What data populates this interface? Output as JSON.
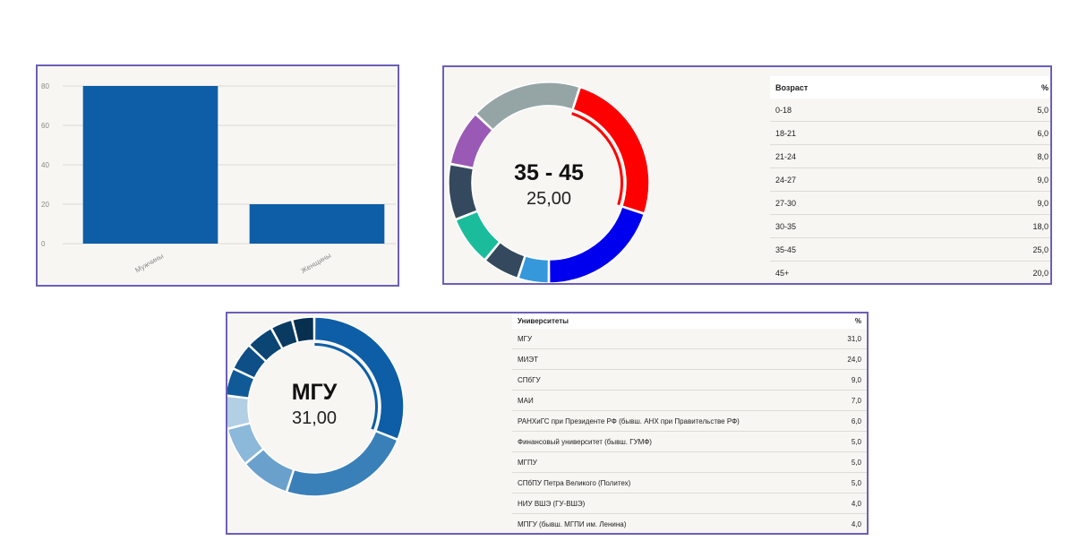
{
  "chart_data": [
    {
      "type": "bar",
      "title": "",
      "categories": [
        "Мужчины",
        "Женщины"
      ],
      "values": [
        80,
        20
      ],
      "ylim": [
        0,
        80
      ],
      "yticks": [
        0,
        20,
        40,
        60,
        80
      ],
      "grid": true,
      "xlabel": "",
      "ylabel": "",
      "color": "#0d5ea6"
    },
    {
      "type": "pie",
      "variant": "donut",
      "title": "Возраст",
      "center_title": "35 - 45",
      "center_value": "25,00",
      "columns": [
        "Возраст",
        "%"
      ],
      "slices": [
        {
          "label": "0-18",
          "value": 5,
          "display": "5,0",
          "color": "#3498db"
        },
        {
          "label": "18-21",
          "value": 6,
          "display": "6,0",
          "color": "#34495e"
        },
        {
          "label": "21-24",
          "value": 8,
          "display": "8,0",
          "color": "#1abc9c"
        },
        {
          "label": "24-27",
          "value": 9,
          "display": "9,0",
          "color": "#34495e"
        },
        {
          "label": "27-30",
          "value": 9,
          "display": "9,0",
          "color": "#9b59b6"
        },
        {
          "label": "30-35",
          "value": 18,
          "display": "18,0",
          "color": "#95a5a6"
        },
        {
          "label": "35-45",
          "value": 25,
          "display": "25,0",
          "color": "#ff0000"
        },
        {
          "label": "45+",
          "value": 20,
          "display": "20,0",
          "color": "#0000ee"
        }
      ],
      "highlight": "35-45"
    },
    {
      "type": "pie",
      "variant": "donut",
      "title": "Университеты",
      "center_title": "МГУ",
      "center_value": "31,00",
      "columns": [
        "Университеты",
        "%"
      ],
      "slices": [
        {
          "label": "МГУ",
          "value": 31,
          "display": "31,0",
          "color": "#0d5ea6"
        },
        {
          "label": "МИЭТ",
          "value": 24,
          "display": "24,0",
          "color": "#3a80b8"
        },
        {
          "label": "СПбГУ",
          "value": 9,
          "display": "9,0",
          "color": "#6aa1cc"
        },
        {
          "label": "МАИ",
          "value": 7,
          "display": "7,0",
          "color": "#8cb8da"
        },
        {
          "label": "РАНХиГС при Президенте РФ (бывш. АНХ при Правительстве РФ)",
          "value": 6,
          "display": "6,0",
          "color": "#b2cfe4"
        },
        {
          "label": "Финансовый университет (бывш. ГУМФ)",
          "value": 5,
          "display": "5,0",
          "color": "#105a97"
        },
        {
          "label": "МГПУ",
          "value": 5,
          "display": "5,0",
          "color": "#0d4f86"
        },
        {
          "label": "СПбПУ Петра Великого (Политех)",
          "value": 5,
          "display": "5,0",
          "color": "#0b4574"
        },
        {
          "label": "НИУ ВШЭ (ГУ-ВШЭ)",
          "value": 4,
          "display": "4,0",
          "color": "#093a62"
        },
        {
          "label": "МПГУ (бывш. МГПИ им. Ленина)",
          "value": 4,
          "display": "4,0",
          "color": "#072f4f"
        }
      ],
      "highlight": "МГУ"
    }
  ]
}
